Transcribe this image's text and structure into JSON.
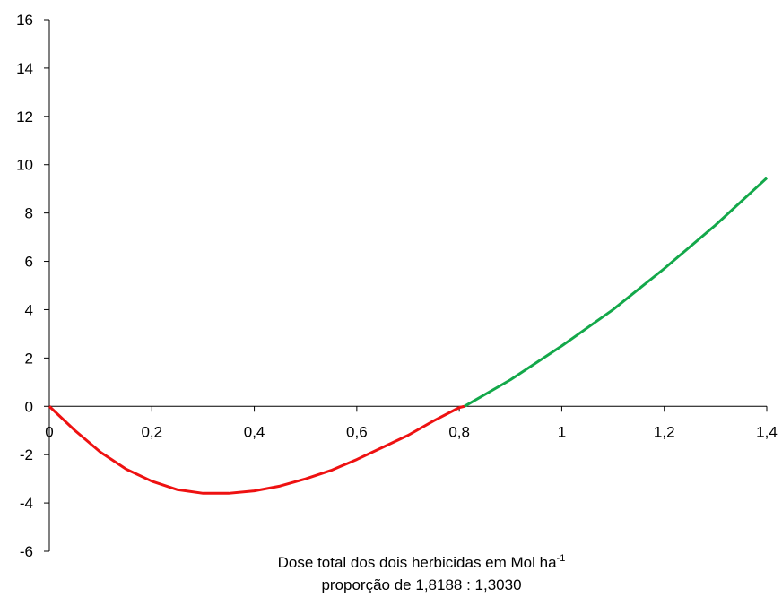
{
  "chart_data": {
    "type": "line",
    "series": [
      {
        "color": "#ee1111",
        "x": [
          0,
          0.05,
          0.1,
          0.15,
          0.2,
          0.25,
          0.3,
          0.35,
          0.4,
          0.45,
          0.5,
          0.55,
          0.6,
          0.65,
          0.7,
          0.75,
          0.8,
          0.81
        ],
        "values": [
          0,
          -1.0,
          -1.9,
          -2.6,
          -3.1,
          -3.45,
          -3.6,
          -3.6,
          -3.5,
          -3.3,
          -3.0,
          -2.65,
          -2.2,
          -1.7,
          -1.2,
          -0.6,
          -0.05,
          0
        ]
      },
      {
        "color": "#13a84a",
        "x": [
          0.81,
          0.9,
          1.0,
          1.1,
          1.2,
          1.3,
          1.4
        ],
        "values": [
          0,
          1.1,
          2.5,
          4.0,
          5.7,
          7.5,
          9.45
        ]
      }
    ],
    "xlim": [
      0,
      1.4
    ],
    "xticks": [
      0,
      {
        "value": 0.2,
        "label": "0,2"
      },
      {
        "value": 0.4,
        "label": "0,4"
      },
      {
        "value": 0.6,
        "label": "0,6"
      },
      {
        "value": 0.8,
        "label": "0,8"
      },
      1,
      {
        "value": 1.2,
        "label": "1,2"
      },
      {
        "value": 1.4,
        "label": "1,4"
      }
    ],
    "ylim": [
      -6,
      16
    ],
    "yticks": [
      -6,
      -4,
      -2,
      0,
      2,
      4,
      6,
      8,
      10,
      12,
      14,
      16
    ],
    "x_label": {
      "text": "Dose total dos dois herbicidas em Mol ha",
      "superscript": "-1"
    },
    "x_label_line2": "proporção de 1,8188 : 1,3030"
  }
}
